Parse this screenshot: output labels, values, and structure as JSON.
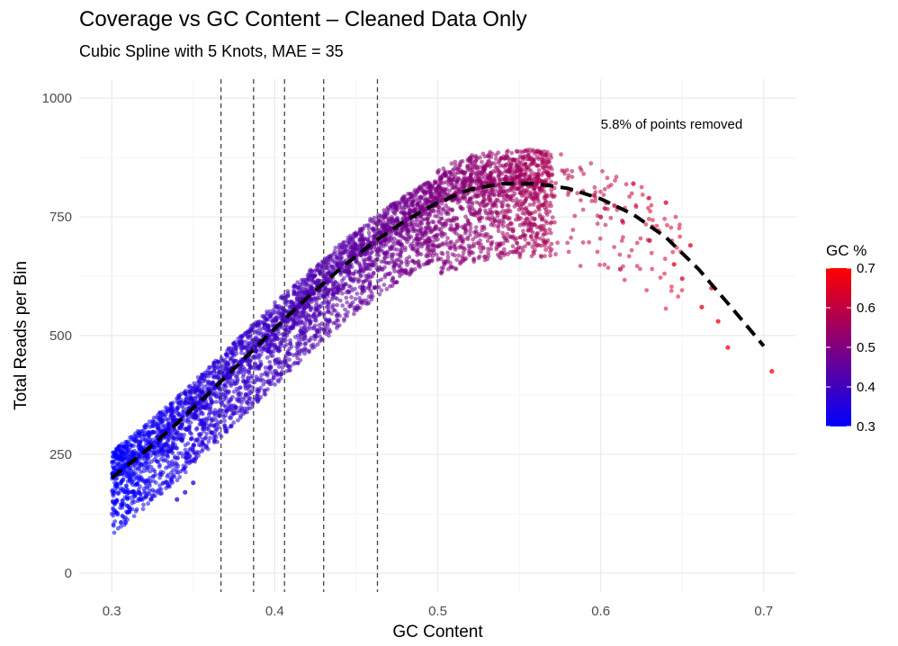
{
  "chart_data": {
    "type": "scatter",
    "title": "Coverage vs GC Content – Cleaned Data Only",
    "subtitle": "Cubic Spline with 5 Knots, MAE = 35",
    "xlabel": "GC Content",
    "ylabel": "Total Reads per Bin",
    "xlim": [
      0.28,
      0.72
    ],
    "ylim": [
      -40,
      1040
    ],
    "x_ticks": [
      0.3,
      0.4,
      0.5,
      0.6,
      0.7
    ],
    "x_tick_labels": [
      "0.3",
      "0.4",
      "0.5",
      "0.6",
      "0.7"
    ],
    "y_ticks": [
      0,
      250,
      500,
      750,
      1000
    ],
    "y_tick_labels": [
      "0",
      "250",
      "500",
      "750",
      "1000"
    ],
    "grid": true,
    "knots": [
      0.367,
      0.387,
      0.406,
      0.43,
      0.463
    ],
    "fit_line": {
      "style": "dashed",
      "color": "#000000",
      "x": [
        0.3,
        0.32,
        0.34,
        0.36,
        0.38,
        0.4,
        0.42,
        0.44,
        0.46,
        0.48,
        0.5,
        0.52,
        0.54,
        0.56,
        0.58,
        0.6,
        0.62,
        0.64,
        0.66,
        0.68,
        0.7
      ],
      "y": [
        200,
        255,
        315,
        380,
        447,
        515,
        580,
        640,
        695,
        742,
        780,
        808,
        820,
        820,
        810,
        788,
        755,
        707,
        640,
        560,
        478
      ]
    },
    "scatter": {
      "n_points": 5200,
      "spread_below": 120,
      "spread_above": 55,
      "extra_points": [
        {
          "x": 0.6,
          "y": 750
        },
        {
          "x": 0.612,
          "y": 640
        },
        {
          "x": 0.62,
          "y": 820
        },
        {
          "x": 0.63,
          "y": 700
        },
        {
          "x": 0.64,
          "y": 780
        },
        {
          "x": 0.645,
          "y": 650
        },
        {
          "x": 0.65,
          "y": 620
        },
        {
          "x": 0.655,
          "y": 690
        },
        {
          "x": 0.662,
          "y": 560
        },
        {
          "x": 0.668,
          "y": 600
        },
        {
          "x": 0.672,
          "y": 530
        },
        {
          "x": 0.678,
          "y": 475
        },
        {
          "x": 0.705,
          "y": 425
        },
        {
          "x": 0.34,
          "y": 155
        },
        {
          "x": 0.35,
          "y": 190
        },
        {
          "x": 0.345,
          "y": 170
        }
      ],
      "opacity": 0.55
    },
    "color_scale": {
      "title": "GC %",
      "low_color": "#0000ff",
      "high_color": "#ff0000",
      "low_value": 0.3,
      "high_value": 0.7,
      "ticks": [
        0.3,
        0.4,
        0.5,
        0.6,
        0.7
      ],
      "tick_labels": [
        "0.3",
        "0.4",
        "0.5",
        "0.6",
        "0.7"
      ]
    },
    "annotation": {
      "text": "5.8% of points removed",
      "x": 0.6,
      "y": 945
    }
  }
}
